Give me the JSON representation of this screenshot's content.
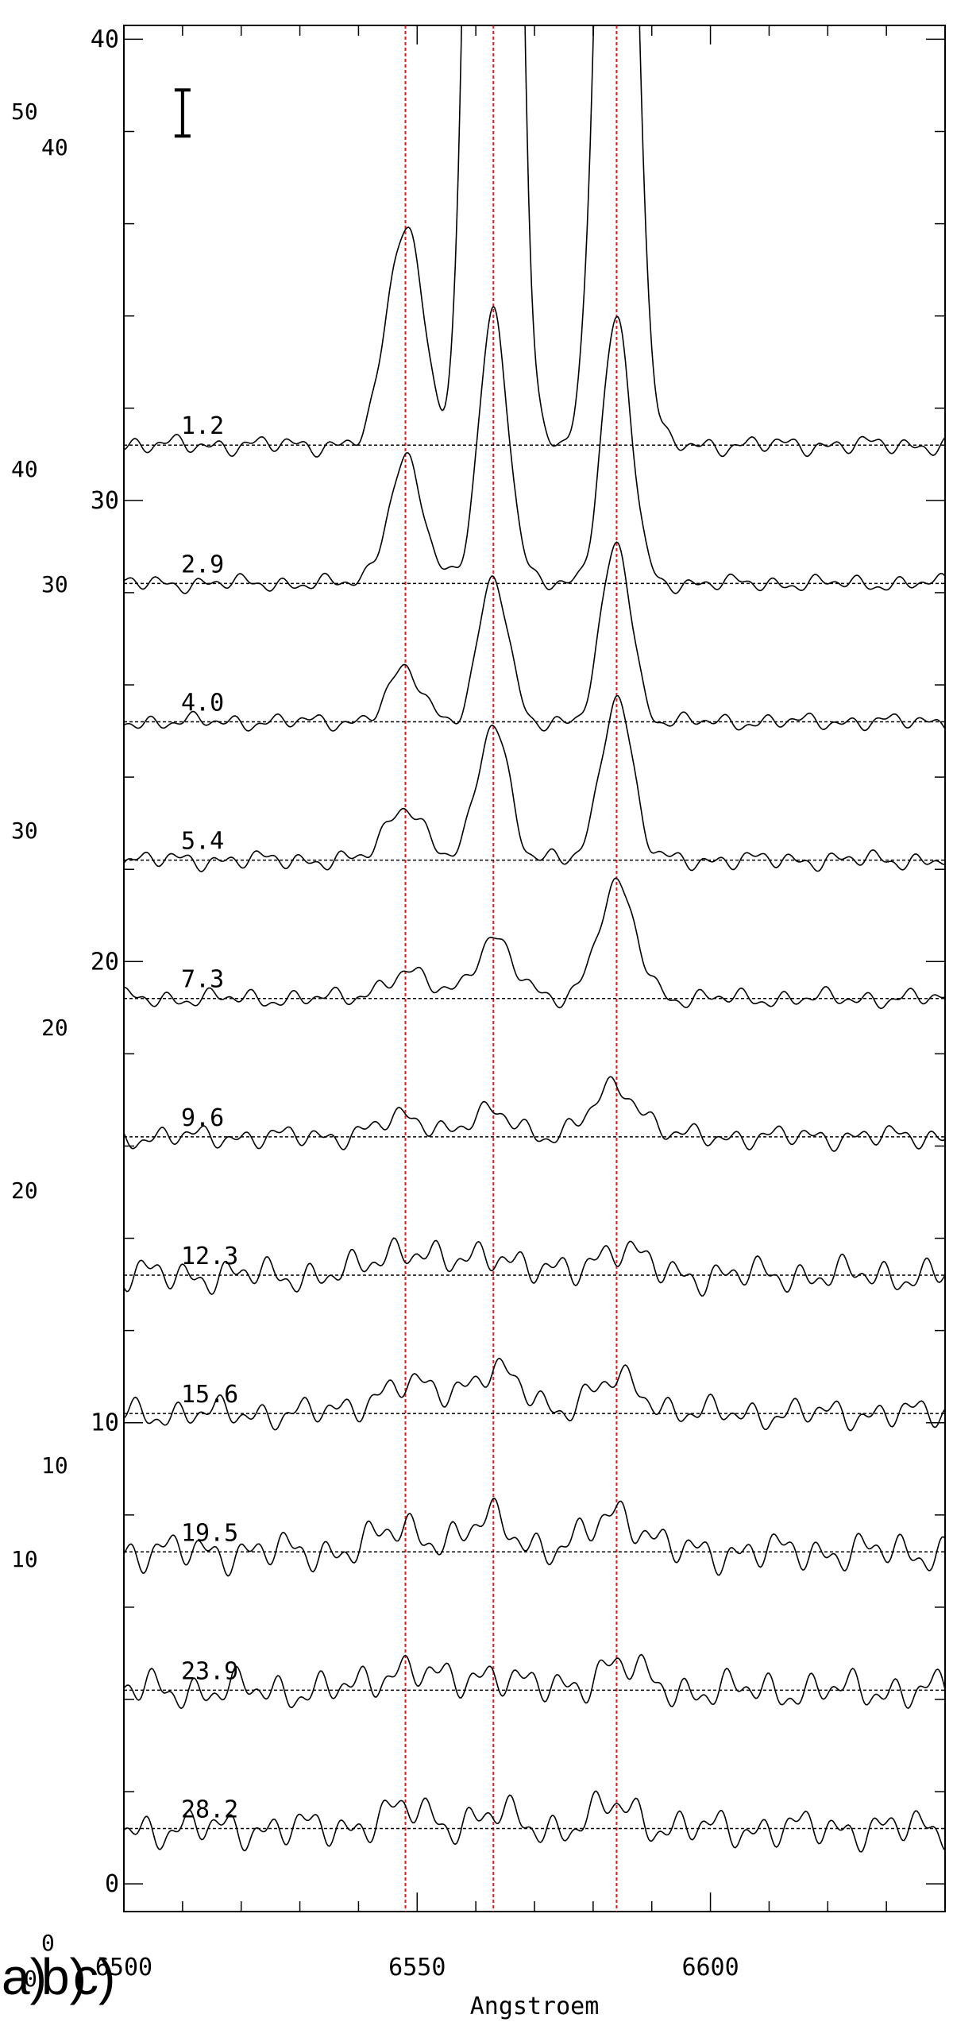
{
  "chart_data": {
    "type": "line",
    "title": "",
    "xlabel": "Angstroem",
    "ylabel": "",
    "xlim": [
      6500,
      6640
    ],
    "ylim": [
      -0.6,
      40.3
    ],
    "x_ticks": [
      "6500",
      "6550",
      "6600"
    ],
    "y_ticks": [
      "0",
      "10",
      "20",
      "30",
      "40"
    ],
    "ghost_labels": [
      "50",
      "40",
      "40",
      "30",
      "30",
      "20",
      "20",
      "10",
      "10",
      "0",
      "0"
    ],
    "panel_labels": [
      "a)",
      "b)",
      "c)"
    ],
    "reference_lines": [
      6548,
      6563,
      6584
    ],
    "error_bar": {
      "x": 6510,
      "y_low": 37.9,
      "y_high": 38.9
    },
    "grid": false,
    "series": [
      {
        "label": "1.2",
        "baseline": 31.2,
        "halpha": 75,
        "nii_red": 28,
        "nii_blue": 4.8,
        "width": 1.0,
        "noise": 0.25
      },
      {
        "label": "2.9",
        "baseline": 28.2,
        "halpha": 5.9,
        "nii_red": 5.7,
        "nii_blue": 2.7,
        "width": 0.95,
        "noise": 0.22
      },
      {
        "label": "4.0",
        "baseline": 25.2,
        "halpha": 3.1,
        "nii_red": 3.9,
        "nii_blue": 1.1,
        "width": 0.95,
        "noise": 0.22
      },
      {
        "label": "5.4",
        "baseline": 22.2,
        "halpha": 3.0,
        "nii_red": 3.6,
        "nii_blue": 1.2,
        "width": 1.0,
        "noise": 0.25
      },
      {
        "label": "7.3",
        "baseline": 19.2,
        "halpha": 1.3,
        "nii_red": 2.4,
        "nii_blue": 0.55,
        "width": 1.25,
        "noise": 0.25
      },
      {
        "label": "9.6",
        "baseline": 16.2,
        "halpha": 0.5,
        "nii_red": 1.1,
        "nii_blue": 0.4,
        "width": 1.5,
        "noise": 0.3
      },
      {
        "label": "12.3",
        "baseline": 13.2,
        "halpha": 0.5,
        "nii_red": 0.6,
        "nii_blue": 0.6,
        "width": 1.5,
        "noise": 0.45
      },
      {
        "label": "15.6",
        "baseline": 10.2,
        "halpha": 0.9,
        "nii_red": 0.7,
        "nii_blue": 0.6,
        "width": 1.8,
        "noise": 0.4
      },
      {
        "label": "19.5",
        "baseline": 7.2,
        "halpha": 0.7,
        "nii_red": 0.9,
        "nii_blue": 0.5,
        "width": 1.5,
        "noise": 0.5
      },
      {
        "label": "23.9",
        "baseline": 4.2,
        "halpha": 0.4,
        "nii_red": 0.6,
        "nii_blue": 0.5,
        "width": 1.4,
        "noise": 0.5
      },
      {
        "label": "28.2",
        "baseline": 1.2,
        "halpha": 0.3,
        "nii_red": 0.5,
        "nii_blue": 0.4,
        "width": 1.4,
        "noise": 0.5
      }
    ],
    "colors": {
      "line": "#000000",
      "reference": "#e8191c",
      "baseline": "#000000",
      "frame": "#000000"
    }
  }
}
